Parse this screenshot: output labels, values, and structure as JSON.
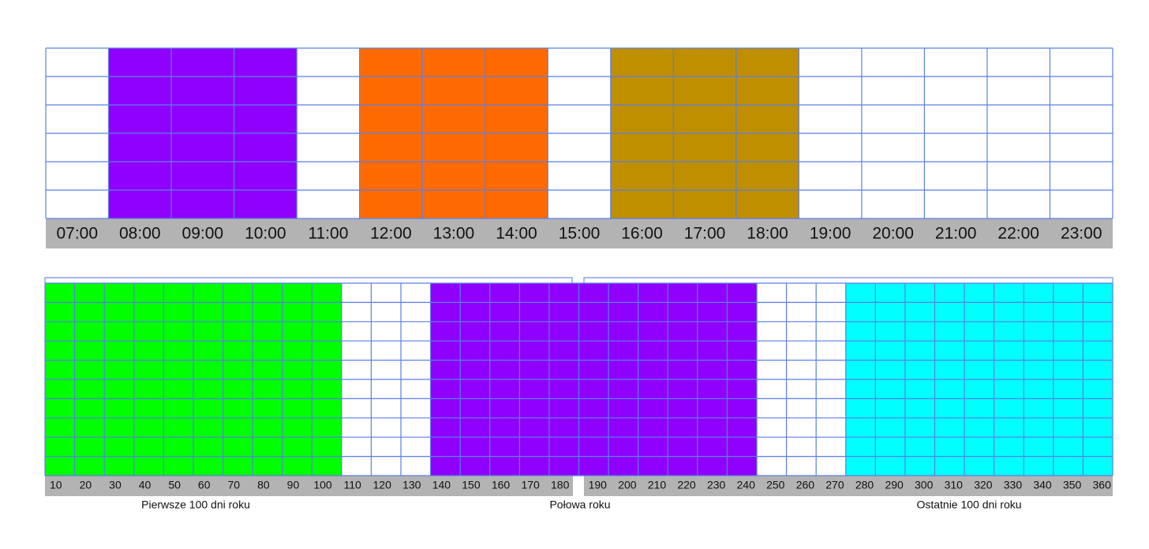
{
  "top_grid": {
    "labels": [
      "07:00",
      "08:00",
      "09:00",
      "10:00",
      "11:00",
      "12:00",
      "13:00",
      "14:00",
      "15:00",
      "16:00",
      "17:00",
      "18:00",
      "19:00",
      "20:00",
      "21:00",
      "22:00",
      "23:00"
    ]
  },
  "bottom_grid": {
    "labels": [
      "10",
      "20",
      "30",
      "40",
      "50",
      "60",
      "70",
      "80",
      "90",
      "100",
      "110",
      "120",
      "130",
      "140",
      "150",
      "160",
      "170",
      "180",
      "190",
      "200",
      "210",
      "220",
      "230",
      "240",
      "250",
      "260",
      "270",
      "280",
      "290",
      "300",
      "310",
      "320",
      "330",
      "340",
      "350",
      "360"
    ],
    "captions": [
      "Pierwsze 100 dni roku",
      "Połowa roku",
      "Ostatnie 100 dni roku"
    ]
  }
}
